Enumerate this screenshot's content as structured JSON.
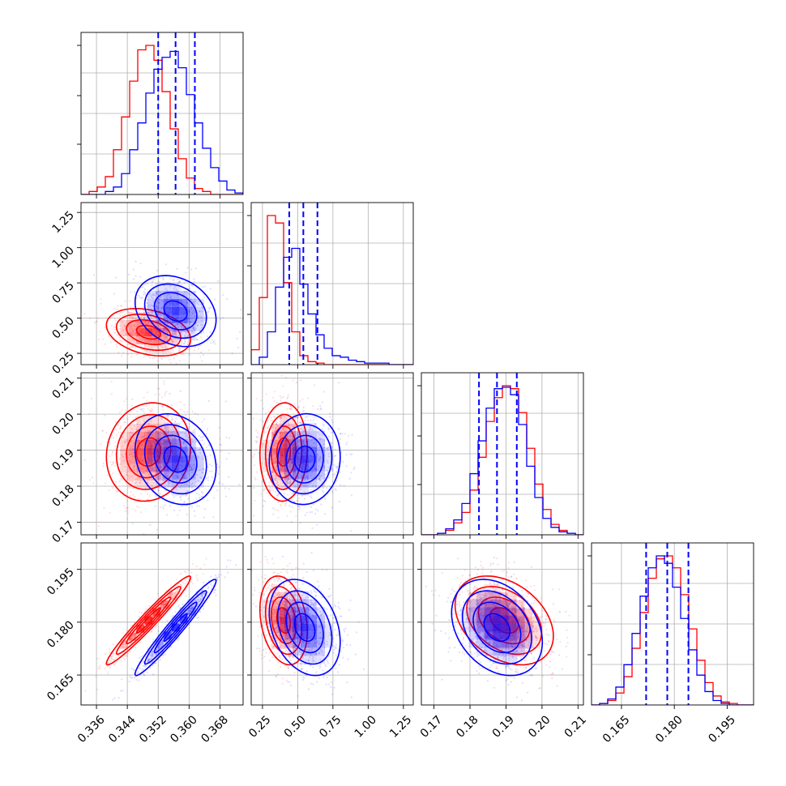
{
  "chart_data": {
    "type": "corner",
    "series": [
      {
        "name": "",
        "color": "#ff0000",
        "mean": [
          0.3495,
          0.4,
          0.1895,
          0.1805
        ],
        "sd": [
          0.0052,
          0.08,
          0.0065,
          0.006
        ],
        "corr": [
          [
            1,
            -0.3,
            0.1,
            0.97
          ],
          [
            -0.3,
            1,
            0.05,
            -0.25
          ],
          [
            0.1,
            0.05,
            1,
            -0.35
          ],
          [
            0.97,
            -0.25,
            -0.35,
            1
          ]
        ]
      },
      {
        "name": "",
        "color": "#0000ff",
        "mean": [
          0.3565,
          0.55,
          0.1875,
          0.1785
        ],
        "sd": [
          0.005,
          0.12,
          0.006,
          0.0065
        ],
        "corr": [
          [
            1,
            -0.25,
            -0.2,
            0.97
          ],
          [
            -0.25,
            1,
            0.05,
            -0.3
          ],
          [
            -0.2,
            0.05,
            1,
            -0.3
          ],
          [
            0.97,
            -0.3,
            -0.3,
            1
          ]
        ]
      }
    ],
    "quantile_lines_color": "#0000ff",
    "diagonal": [
      {
        "parameter": 0,
        "quantiles": [
          0.352,
          0.3565,
          0.3615
        ],
        "red_hist": [
          0.0,
          0.02,
          0.05,
          0.12,
          0.3,
          0.52,
          0.76,
          0.97,
          1.0,
          0.9,
          0.69,
          0.44,
          0.24,
          0.11,
          0.04,
          0.02,
          0.0,
          0.0,
          0.0,
          0.0
        ],
        "blue_hist": [
          0.0,
          0.0,
          0.0,
          0.02,
          0.05,
          0.14,
          0.3,
          0.48,
          0.68,
          0.84,
          0.92,
          0.96,
          0.85,
          0.67,
          0.48,
          0.31,
          0.18,
          0.09,
          0.03,
          0.01
        ]
      },
      {
        "parameter": 1,
        "quantiles": [
          0.44,
          0.54,
          0.64
        ],
        "red_hist": [
          0.1,
          0.45,
          1.0,
          0.95,
          0.55,
          0.22,
          0.06,
          0.02,
          0.01,
          0.0,
          0.0,
          0.0,
          0.0,
          0.0,
          0.0,
          0.0,
          0.0,
          0.0,
          0.0,
          0.0
        ],
        "blue_hist": [
          0.0,
          0.05,
          0.22,
          0.52,
          0.72,
          0.78,
          0.54,
          0.34,
          0.2,
          0.11,
          0.06,
          0.05,
          0.03,
          0.02,
          0.01,
          0.01,
          0.01,
          0.0,
          0.0,
          0.0
        ]
      },
      {
        "parameter": 2,
        "quantiles": [
          0.1825,
          0.1875,
          0.193
        ],
        "red_hist": [
          0.0,
          0.0,
          0.01,
          0.03,
          0.08,
          0.15,
          0.3,
          0.52,
          0.76,
          0.92,
          1.0,
          0.98,
          0.82,
          0.58,
          0.34,
          0.17,
          0.07,
          0.03,
          0.01,
          0.0
        ],
        "blue_hist": [
          0.0,
          0.0,
          0.01,
          0.04,
          0.1,
          0.21,
          0.41,
          0.63,
          0.85,
          0.98,
          0.99,
          0.94,
          0.74,
          0.46,
          0.25,
          0.11,
          0.05,
          0.02,
          0.01,
          0.0
        ]
      },
      {
        "parameter": 3,
        "quantiles": [
          0.172,
          0.178,
          0.184
        ],
        "red_hist": [
          0.0,
          0.01,
          0.03,
          0.08,
          0.19,
          0.38,
          0.62,
          0.85,
          0.98,
          1.0,
          0.92,
          0.74,
          0.51,
          0.3,
          0.15,
          0.06,
          0.02,
          0.01,
          0.0,
          0.0
        ],
        "blue_hist": [
          0.0,
          0.01,
          0.04,
          0.12,
          0.27,
          0.48,
          0.73,
          0.92,
          1.0,
          0.95,
          0.79,
          0.58,
          0.37,
          0.2,
          0.09,
          0.03,
          0.01,
          0.0,
          0.0,
          0.0
        ]
      }
    ],
    "ranges": [
      [
        0.332,
        0.374
      ],
      [
        0.17,
        1.32
      ],
      [
        0.1665,
        0.2115
      ],
      [
        0.1565,
        0.2025
      ]
    ],
    "ticks": [
      [
        0.336,
        0.344,
        0.352,
        0.36,
        0.368
      ],
      [
        0.25,
        0.5,
        0.75,
        1.0,
        1.25
      ],
      [
        0.17,
        0.18,
        0.19,
        0.2,
        0.21
      ],
      [
        0.165,
        0.18,
        0.195
      ]
    ],
    "tick_labels": [
      [
        "0.336",
        "0.344",
        "0.352",
        "0.360",
        "0.368"
      ],
      [
        "0.25",
        "0.50",
        "0.75",
        "1.00",
        "1.25"
      ],
      [
        "0.17",
        "0.18",
        "0.19",
        "0.20",
        "0.21"
      ],
      [
        "0.165",
        "0.180",
        "0.195"
      ]
    ],
    "grid": true,
    "title": "",
    "axis_labels": []
  }
}
